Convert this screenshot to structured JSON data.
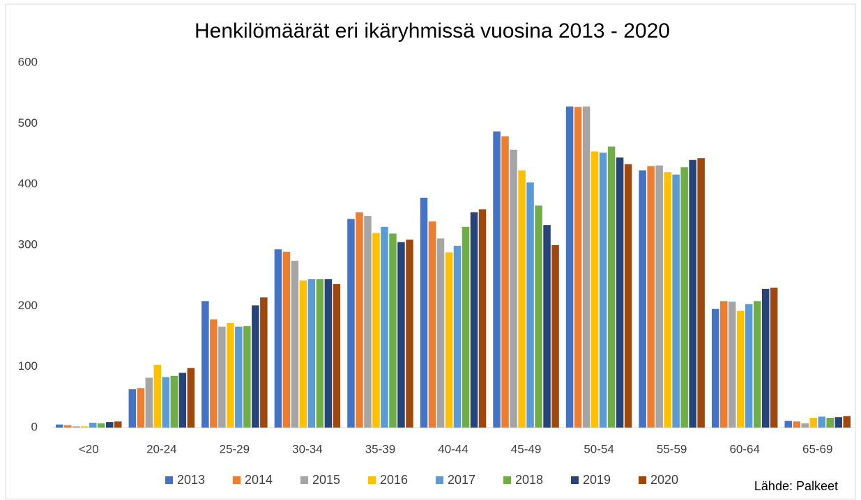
{
  "chart_data": {
    "type": "bar",
    "title": "Henkilömäärät eri ikäryhmissä vuosina 2013 - 2020",
    "annotation": "Lähde: Palkeet",
    "categories": [
      "<20",
      "20-24",
      "25-29",
      "30-34",
      "35-39",
      "40-44",
      "45-49",
      "50-54",
      "55-59",
      "60-64",
      "65-69"
    ],
    "series": [
      {
        "name": "2013",
        "color": "#4472c4",
        "values": [
          5,
          63,
          208,
          293,
          343,
          378,
          487,
          528,
          423,
          195,
          11
        ]
      },
      {
        "name": "2014",
        "color": "#ed7d31",
        "values": [
          4,
          65,
          178,
          289,
          354,
          339,
          479,
          527,
          430,
          208,
          10
        ]
      },
      {
        "name": "2015",
        "color": "#a5a5a5",
        "values": [
          2,
          82,
          166,
          274,
          348,
          311,
          457,
          528,
          431,
          207,
          7
        ]
      },
      {
        "name": "2016",
        "color": "#ffc000",
        "values": [
          2,
          103,
          172,
          242,
          320,
          288,
          423,
          454,
          420,
          192,
          16
        ]
      },
      {
        "name": "2017",
        "color": "#5b9bd5",
        "values": [
          8,
          83,
          166,
          244,
          330,
          299,
          403,
          452,
          416,
          203,
          18
        ]
      },
      {
        "name": "2018",
        "color": "#70ad47",
        "values": [
          7,
          85,
          167,
          244,
          319,
          330,
          365,
          462,
          428,
          208,
          16
        ]
      },
      {
        "name": "2019",
        "color": "#264478",
        "values": [
          9,
          90,
          201,
          244,
          305,
          354,
          333,
          444,
          440,
          228,
          17
        ]
      },
      {
        "name": "2020",
        "color": "#9e480e",
        "values": [
          10,
          98,
          214,
          236,
          309,
          359,
          300,
          433,
          443,
          230,
          19
        ]
      }
    ],
    "ylim": [
      0,
      600
    ],
    "yticks": [
      0,
      100,
      200,
      300,
      400,
      500,
      600
    ],
    "grid": false,
    "legend": "bottom"
  }
}
